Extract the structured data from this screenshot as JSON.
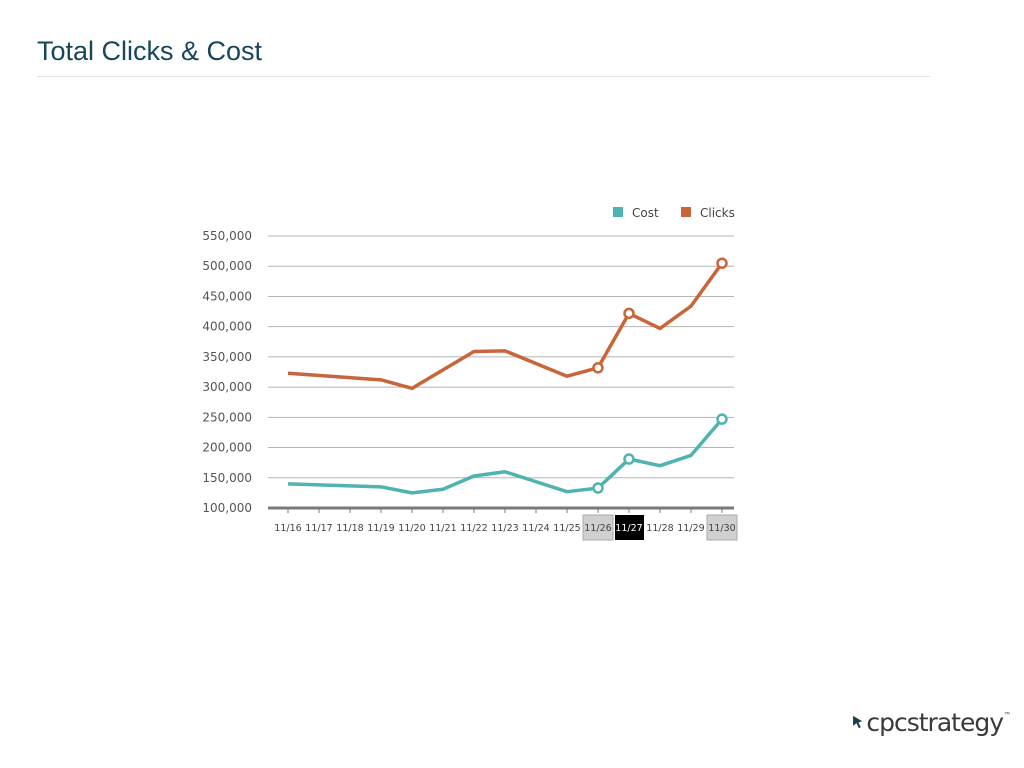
{
  "slide": {
    "title": "Total Clicks & Cost"
  },
  "logo": {
    "text": "cpcstrategy",
    "tm": "™"
  },
  "colors": {
    "cost": "#4fb3b1",
    "clicks": "#c8653a",
    "title": "#17465a"
  },
  "chart_data": {
    "type": "line",
    "title": "",
    "xlabel": "",
    "ylabel": "",
    "categories": [
      "11/16",
      "11/17",
      "11/18",
      "11/19",
      "11/20",
      "11/21",
      "11/22",
      "11/23",
      "11/24",
      "11/25",
      "11/26",
      "11/27",
      "11/28",
      "11/29",
      "11/30"
    ],
    "ylim": [
      100000,
      550000
    ],
    "yticks": [
      100000,
      150000,
      200000,
      250000,
      300000,
      350000,
      400000,
      450000,
      500000,
      550000
    ],
    "ytick_labels": [
      "100,000",
      "150,000",
      "200,000",
      "250,000",
      "300,000",
      "350,000",
      "400,000",
      "450,000",
      "500,000",
      "550,000"
    ],
    "legend": {
      "placement": "top-right"
    },
    "grid": true,
    "series": [
      {
        "name": "Cost",
        "values": [
          140000,
          null,
          null,
          135000,
          125000,
          131000,
          153000,
          160000,
          null,
          127000,
          133000,
          181000,
          170000,
          187000,
          247000
        ],
        "markers": [
          10,
          11,
          14
        ]
      },
      {
        "name": "Clicks",
        "values": [
          323000,
          null,
          null,
          312000,
          298000,
          null,
          359000,
          360000,
          null,
          318000,
          332000,
          422000,
          397000,
          434000,
          505000
        ],
        "markers": [
          10,
          11,
          14
        ]
      }
    ],
    "highlighted_categories": {
      "grey": [
        "11/26",
        "11/30"
      ],
      "black": [
        "11/27"
      ]
    }
  }
}
